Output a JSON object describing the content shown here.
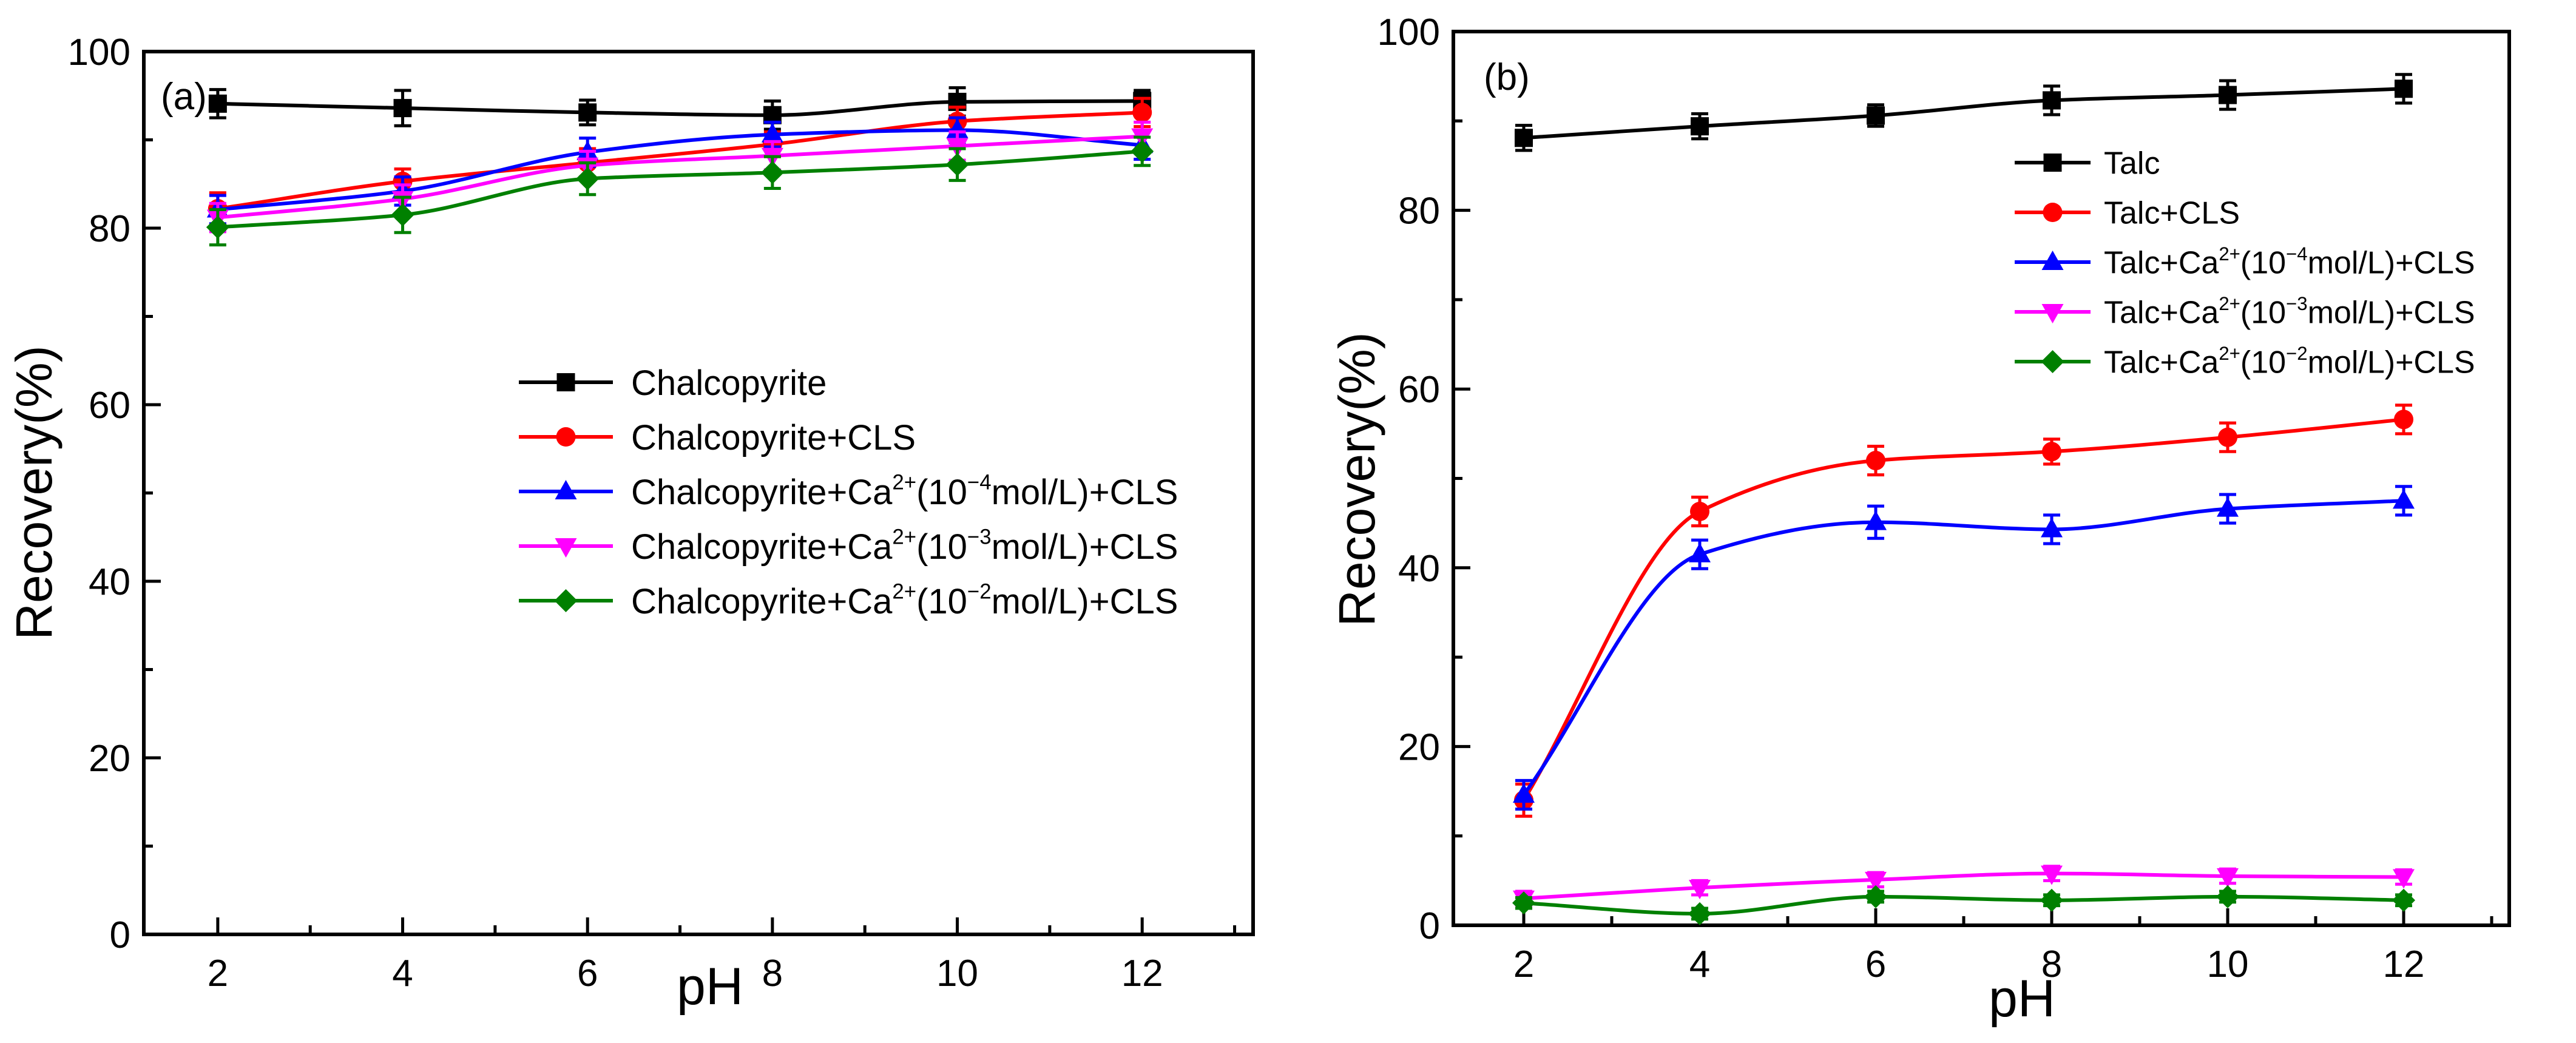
{
  "chart_data": [
    {
      "type": "line",
      "panel_label": "(a)",
      "xlabel": "pH",
      "ylabel": "Recovery(%)",
      "xlim": [
        1.2,
        13.2
      ],
      "ylim": [
        0,
        100
      ],
      "x_ticks": [
        2,
        4,
        6,
        8,
        10,
        12
      ],
      "y_ticks": [
        0,
        20,
        40,
        60,
        80,
        100
      ],
      "legend_position": "center-right",
      "x": [
        2,
        4,
        6,
        8,
        10,
        12
      ],
      "series": [
        {
          "name": "Chalcopyrite",
          "legend": {
            "pre": "Chalcopyrite",
            "sup": "",
            "mid": "",
            "exp": "",
            "post": ""
          },
          "color": "#000000",
          "marker": "square",
          "values": [
            94.1,
            93.6,
            93.1,
            92.8,
            94.3,
            94.4
          ],
          "errors": [
            1.6,
            2.0,
            1.4,
            1.6,
            1.6,
            1.2
          ]
        },
        {
          "name": "Chalcopyrite+CLS",
          "legend": {
            "pre": "Chalcopyrite+CLS",
            "sup": "",
            "mid": "",
            "exp": "",
            "post": ""
          },
          "color": "#ff0000",
          "marker": "circle",
          "values": [
            82.2,
            85.3,
            87.4,
            89.5,
            92.1,
            93.1
          ],
          "errors": [
            1.8,
            1.4,
            1.6,
            1.4,
            1.6,
            1.6
          ]
        },
        {
          "name": "Chalcopyrite+Ca2+(10−4mol/L)+CLS",
          "legend": {
            "pre": "Chalcopyrite+Ca",
            "sup": "2+",
            "mid": "(10",
            "exp": "−4",
            "post": "mol/L)+CLS"
          },
          "color": "#0000ff",
          "marker": "triangle-up",
          "values": [
            82.1,
            84.2,
            88.6,
            90.6,
            91.1,
            89.4
          ],
          "errors": [
            1.6,
            1.6,
            1.6,
            1.4,
            1.4,
            1.6
          ]
        },
        {
          "name": "Chalcopyrite+Ca2+(10−3mol/L)+CLS",
          "legend": {
            "pre": "Chalcopyrite+Ca",
            "sup": "2+",
            "mid": "(10",
            "exp": "−3",
            "post": "mol/L)+CLS"
          },
          "color": "#ff00ff",
          "marker": "triangle-down",
          "values": [
            81.2,
            83.3,
            87.1,
            88.2,
            89.3,
            90.4
          ],
          "errors": [
            1.6,
            1.6,
            1.6,
            1.6,
            1.6,
            1.6
          ]
        },
        {
          "name": "Chalcopyrite+Ca2+(10−2mol/L)+CLS",
          "legend": {
            "pre": "Chalcopyrite+Ca",
            "sup": "2+",
            "mid": "(10",
            "exp": "−2",
            "post": "mol/L)+CLS"
          },
          "color": "#008000",
          "marker": "diamond",
          "values": [
            80.1,
            81.5,
            85.6,
            86.3,
            87.2,
            88.7
          ],
          "errors": [
            2.0,
            2.0,
            1.8,
            1.8,
            1.8,
            1.6
          ]
        }
      ]
    },
    {
      "type": "line",
      "panel_label": "(b)",
      "xlabel": "pH",
      "ylabel": "Recovery(%)",
      "xlim": [
        1.2,
        13.2
      ],
      "ylim": [
        0,
        100
      ],
      "x_ticks": [
        2,
        4,
        6,
        8,
        10,
        12
      ],
      "y_ticks": [
        0,
        20,
        40,
        60,
        80,
        100
      ],
      "legend_position": "top-right",
      "x": [
        2,
        4,
        6,
        8,
        10,
        12
      ],
      "series": [
        {
          "name": "Talc",
          "legend": {
            "pre": "Talc",
            "sup": "",
            "mid": "",
            "exp": "",
            "post": ""
          },
          "color": "#000000",
          "marker": "square",
          "values": [
            88.1,
            89.4,
            90.6,
            92.3,
            92.9,
            93.6
          ],
          "errors": [
            1.4,
            1.4,
            1.2,
            1.6,
            1.6,
            1.6
          ]
        },
        {
          "name": "Talc+CLS",
          "legend": {
            "pre": "Talc+CLS",
            "sup": "",
            "mid": "",
            "exp": "",
            "post": ""
          },
          "color": "#ff0000",
          "marker": "circle",
          "values": [
            14.0,
            46.3,
            52.0,
            53.0,
            54.6,
            56.6
          ],
          "errors": [
            1.8,
            1.6,
            1.6,
            1.4,
            1.6,
            1.6
          ]
        },
        {
          "name": "Talc+Ca2+(10−4mol/L)+CLS",
          "legend": {
            "pre": "Talc+Ca",
            "sup": "2+",
            "mid": "(10",
            "exp": "−4",
            "post": "mol/L)+CLS"
          },
          "color": "#0000ff",
          "marker": "triangle-up",
          "values": [
            14.6,
            41.5,
            45.1,
            44.3,
            46.6,
            47.5
          ],
          "errors": [
            1.6,
            1.6,
            1.8,
            1.6,
            1.6,
            1.6
          ]
        },
        {
          "name": "Talc+Ca2+(10−3mol/L)+CLS",
          "legend": {
            "pre": "Talc+Ca",
            "sup": "2+",
            "mid": "(10",
            "exp": "−3",
            "post": "mol/L)+CLS"
          },
          "color": "#ff00ff",
          "marker": "triangle-down",
          "values": [
            3.0,
            4.2,
            5.1,
            5.8,
            5.5,
            5.4
          ],
          "errors": [
            0.8,
            0.8,
            0.8,
            0.8,
            0.8,
            0.8
          ]
        },
        {
          "name": "Talc+Ca2+(10−2mol/L)+CLS",
          "legend": {
            "pre": "Talc+Ca",
            "sup": "2+",
            "mid": "(10",
            "exp": "−2",
            "post": "mol/L)+CLS"
          },
          "color": "#008000",
          "marker": "diamond",
          "values": [
            2.5,
            1.3,
            3.2,
            2.8,
            3.2,
            2.8
          ],
          "errors": [
            0.6,
            0.6,
            0.6,
            0.6,
            0.6,
            0.6
          ]
        }
      ]
    }
  ]
}
